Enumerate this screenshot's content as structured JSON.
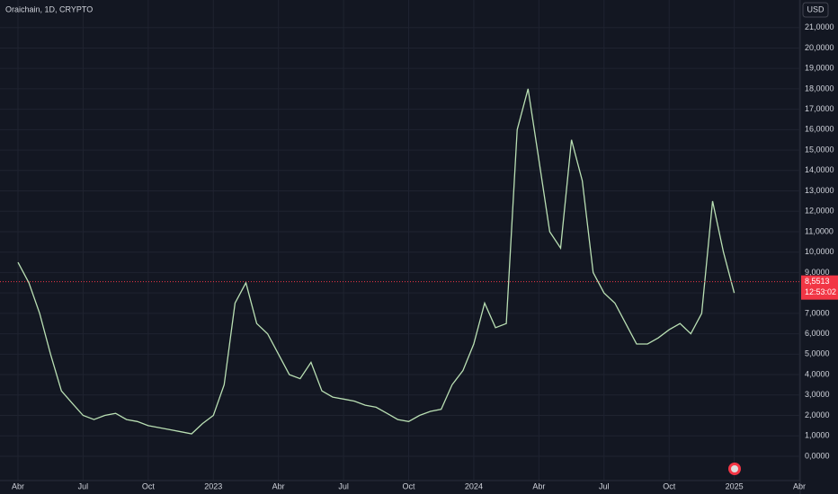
{
  "chart_data": {
    "type": "line",
    "title": "Oraichain, 1D, CRYPTO",
    "currency": "USD",
    "categories": [
      "Abr",
      null,
      null,
      null,
      null,
      null,
      "Jul",
      null,
      null,
      null,
      null,
      null,
      "Oct",
      null,
      null,
      null,
      null,
      null,
      "2023",
      null,
      null,
      null,
      null,
      null,
      "Abr",
      null,
      null,
      null,
      null,
      null,
      "Jul",
      null,
      null,
      null,
      null,
      null,
      "Oct",
      null,
      null,
      null,
      null,
      null,
      "2024",
      null,
      null,
      null,
      null,
      null,
      "Abr",
      null,
      null,
      null,
      null,
      null,
      "Jul",
      null,
      null,
      null,
      null,
      null,
      "Oct",
      null,
      null,
      null,
      null,
      null,
      "2025",
      null,
      null,
      null,
      null,
      null,
      "Abr"
    ],
    "series": [
      {
        "name": "Oraichain",
        "color": "#b9dfb3",
        "values": [
          9.5,
          8.5,
          7.0,
          5.0,
          3.2,
          2.6,
          2.0,
          1.8,
          2.0,
          2.1,
          1.8,
          1.7,
          1.5,
          1.4,
          1.3,
          1.2,
          1.1,
          1.6,
          2.0,
          3.5,
          7.5,
          8.5,
          6.5,
          6.0,
          5.0,
          4.0,
          3.8,
          4.6,
          3.2,
          2.9,
          2.8,
          2.7,
          2.5,
          2.4,
          2.1,
          1.8,
          1.7,
          2.0,
          2.2,
          2.3,
          3.5,
          4.2,
          5.5,
          7.5,
          6.3,
          6.5,
          16.0,
          18.0,
          14.5,
          11.0,
          10.2,
          15.5,
          13.5,
          9.0,
          8.0,
          7.5,
          6.5,
          5.5,
          5.5,
          5.8,
          6.2,
          6.5,
          6.0,
          7.0,
          12.5,
          10.0,
          8.0,
          null,
          null,
          null,
          null,
          null,
          null
        ]
      }
    ],
    "last_price": {
      "value": 8.5513,
      "label": "8,5513",
      "color": "#f23645"
    },
    "countdown": "12:53:02",
    "ylim": [
      -1.19,
      22.0
    ],
    "yticks": [
      {
        "value": 0,
        "label": "0,0000"
      },
      {
        "value": 1,
        "label": "1,0000"
      },
      {
        "value": 2,
        "label": "2,0000"
      },
      {
        "value": 3,
        "label": "3,0000"
      },
      {
        "value": 4,
        "label": "4,0000"
      },
      {
        "value": 5,
        "label": "5,0000"
      },
      {
        "value": 6,
        "label": "6,0000"
      },
      {
        "value": 7,
        "label": "7,0000"
      },
      {
        "value": 8,
        "label": "8,0000"
      },
      {
        "value": 9,
        "label": "9,0000"
      },
      {
        "value": 10,
        "label": "10,0000"
      },
      {
        "value": 11,
        "label": "11,0000"
      },
      {
        "value": 12,
        "label": "12,0000"
      },
      {
        "value": 13,
        "label": "13,0000"
      },
      {
        "value": 14,
        "label": "14,0000"
      },
      {
        "value": 15,
        "label": "15,0000"
      },
      {
        "value": 16,
        "label": "16,0000"
      },
      {
        "value": 17,
        "label": "17,0000"
      },
      {
        "value": 18,
        "label": "18,0000"
      },
      {
        "value": 19,
        "label": "19,0000"
      },
      {
        "value": 20,
        "label": "20,0000"
      },
      {
        "value": 21,
        "label": "21,0000"
      }
    ],
    "grid": true,
    "log_scale": false
  }
}
